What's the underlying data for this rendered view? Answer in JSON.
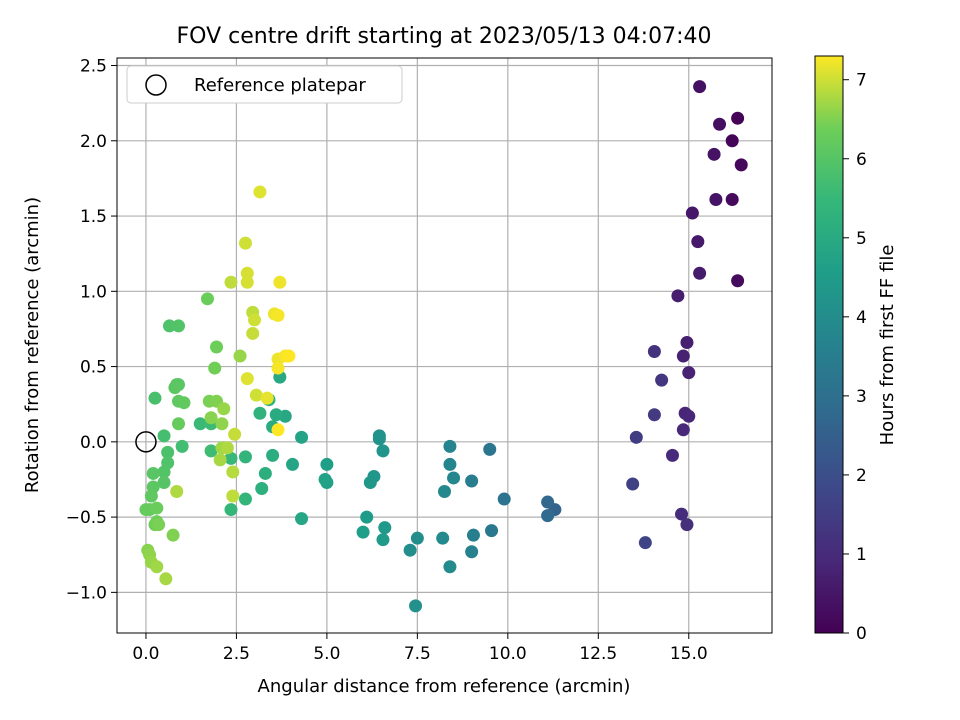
{
  "chart_data": {
    "type": "scatter",
    "title": "FOV centre drift starting at 2023/05/13 04:07:40",
    "xlabel": "Angular distance from reference (arcmin)",
    "ylabel": "Rotation from reference (arcmin)",
    "xlim": [
      -0.8,
      17.3
    ],
    "ylim": [
      -1.27,
      2.55
    ],
    "xticks": [
      "0.0",
      "2.5",
      "5.0",
      "7.5",
      "10.0",
      "12.5",
      "15.0"
    ],
    "xtick_values": [
      0,
      2.5,
      5,
      7.5,
      10,
      12.5,
      15
    ],
    "yticks": [
      "−1.0",
      "−0.5",
      "0.0",
      "0.5",
      "1.0",
      "1.5",
      "2.0",
      "2.5"
    ],
    "ytick_values": [
      -1,
      -0.5,
      0,
      0.5,
      1,
      1.5,
      2,
      2.5
    ],
    "grid": true,
    "legend": {
      "position": "top-left",
      "entries": [
        "Reference platepar"
      ]
    },
    "reference_point": {
      "x": 0,
      "y": 0,
      "label": "Reference platepar"
    },
    "colorbar": {
      "label": "Hours from first FF file",
      "min": 0,
      "max": 7.3,
      "ticks": [
        "0",
        "1",
        "2",
        "3",
        "4",
        "5",
        "6",
        "7"
      ],
      "tick_values": [
        0,
        1,
        2,
        3,
        4,
        5,
        6,
        7
      ],
      "colormap": "viridis"
    },
    "points": [
      {
        "x": 16.35,
        "y": 2.15,
        "h": 0.05
      },
      {
        "x": 16.2,
        "y": 2.0,
        "h": 0.1
      },
      {
        "x": 16.45,
        "y": 1.84,
        "h": 0.15
      },
      {
        "x": 16.2,
        "y": 1.61,
        "h": 0.2
      },
      {
        "x": 16.35,
        "y": 1.07,
        "h": 0.25
      },
      {
        "x": 15.85,
        "y": 2.11,
        "h": 0.3
      },
      {
        "x": 15.3,
        "y": 2.36,
        "h": 0.35
      },
      {
        "x": 15.7,
        "y": 1.91,
        "h": 0.4
      },
      {
        "x": 15.75,
        "y": 1.61,
        "h": 0.45
      },
      {
        "x": 15.1,
        "y": 1.52,
        "h": 0.5
      },
      {
        "x": 15.25,
        "y": 1.33,
        "h": 0.55
      },
      {
        "x": 15.3,
        "y": 1.12,
        "h": 0.6
      },
      {
        "x": 14.7,
        "y": 0.97,
        "h": 0.65
      },
      {
        "x": 14.95,
        "y": 0.66,
        "h": 0.7
      },
      {
        "x": 14.85,
        "y": 0.57,
        "h": 0.75
      },
      {
        "x": 15.0,
        "y": 0.46,
        "h": 0.8
      },
      {
        "x": 14.9,
        "y": 0.19,
        "h": 0.85
      },
      {
        "x": 15.0,
        "y": 0.17,
        "h": 0.9
      },
      {
        "x": 14.85,
        "y": 0.08,
        "h": 0.95
      },
      {
        "x": 14.55,
        "y": -0.09,
        "h": 1.0
      },
      {
        "x": 14.8,
        "y": -0.48,
        "h": 1.05
      },
      {
        "x": 14.95,
        "y": -0.55,
        "h": 1.1
      },
      {
        "x": 14.05,
        "y": 0.6,
        "h": 1.2
      },
      {
        "x": 14.25,
        "y": 0.41,
        "h": 1.3
      },
      {
        "x": 14.05,
        "y": 0.18,
        "h": 1.4
      },
      {
        "x": 13.55,
        "y": 0.03,
        "h": 1.5
      },
      {
        "x": 13.45,
        "y": -0.28,
        "h": 1.6
      },
      {
        "x": 13.8,
        "y": -0.67,
        "h": 1.7
      },
      {
        "x": 11.3,
        "y": -0.45,
        "h": 2.6
      },
      {
        "x": 11.1,
        "y": -0.4,
        "h": 2.7
      },
      {
        "x": 11.1,
        "y": -0.49,
        "h": 2.8
      },
      {
        "x": 9.9,
        "y": -0.38,
        "h": 3.1
      },
      {
        "x": 9.5,
        "y": -0.05,
        "h": 3.2
      },
      {
        "x": 9.55,
        "y": -0.59,
        "h": 3.3
      },
      {
        "x": 9.0,
        "y": -0.26,
        "h": 3.5
      },
      {
        "x": 9.05,
        "y": -0.62,
        "h": 3.55
      },
      {
        "x": 9.0,
        "y": -0.73,
        "h": 3.6
      },
      {
        "x": 8.4,
        "y": -0.03,
        "h": 3.7
      },
      {
        "x": 8.4,
        "y": -0.15,
        "h": 3.75
      },
      {
        "x": 8.5,
        "y": -0.24,
        "h": 3.8
      },
      {
        "x": 8.25,
        "y": -0.33,
        "h": 3.85
      },
      {
        "x": 8.2,
        "y": -0.64,
        "h": 3.9
      },
      {
        "x": 8.4,
        "y": -0.83,
        "h": 3.95
      },
      {
        "x": 7.5,
        "y": -0.64,
        "h": 4.0
      },
      {
        "x": 7.3,
        "y": -0.72,
        "h": 4.05
      },
      {
        "x": 7.45,
        "y": -1.09,
        "h": 4.1
      },
      {
        "x": 6.45,
        "y": 0.04,
        "h": 4.15
      },
      {
        "x": 6.45,
        "y": 0.02,
        "h": 4.2
      },
      {
        "x": 6.55,
        "y": -0.06,
        "h": 4.25
      },
      {
        "x": 6.3,
        "y": -0.23,
        "h": 4.3
      },
      {
        "x": 6.2,
        "y": -0.27,
        "h": 4.35
      },
      {
        "x": 6.6,
        "y": -0.57,
        "h": 4.4
      },
      {
        "x": 6.55,
        "y": -0.65,
        "h": 4.45
      },
      {
        "x": 6.1,
        "y": -0.5,
        "h": 4.5
      },
      {
        "x": 6.0,
        "y": -0.6,
        "h": 4.55
      },
      {
        "x": 5.0,
        "y": -0.15,
        "h": 4.6
      },
      {
        "x": 5.0,
        "y": -0.27,
        "h": 4.65
      },
      {
        "x": 4.95,
        "y": -0.25,
        "h": 4.7
      },
      {
        "x": 4.3,
        "y": 0.03,
        "h": 4.75
      },
      {
        "x": 4.05,
        "y": -0.15,
        "h": 4.8
      },
      {
        "x": 4.3,
        "y": -0.51,
        "h": 4.85
      },
      {
        "x": 3.85,
        "y": 0.17,
        "h": 4.9
      },
      {
        "x": 3.7,
        "y": 0.43,
        "h": 4.95
      },
      {
        "x": 3.6,
        "y": 0.18,
        "h": 5.0
      },
      {
        "x": 3.5,
        "y": 0.1,
        "h": 5.05
      },
      {
        "x": 3.5,
        "y": -0.09,
        "h": 5.1
      },
      {
        "x": 3.3,
        "y": -0.21,
        "h": 5.15
      },
      {
        "x": 3.2,
        "y": -0.31,
        "h": 5.2
      },
      {
        "x": 3.4,
        "y": 0.28,
        "h": 5.25
      },
      {
        "x": 3.15,
        "y": 0.19,
        "h": 5.3
      },
      {
        "x": 2.75,
        "y": -0.1,
        "h": 5.35
      },
      {
        "x": 2.75,
        "y": -0.38,
        "h": 5.4
      },
      {
        "x": 2.35,
        "y": -0.45,
        "h": 5.45
      },
      {
        "x": 2.35,
        "y": -0.11,
        "h": 5.5
      },
      {
        "x": 1.5,
        "y": 0.12,
        "h": 5.55
      },
      {
        "x": 1.8,
        "y": 0.12,
        "h": 5.6
      },
      {
        "x": 1.8,
        "y": -0.06,
        "h": 5.65
      },
      {
        "x": 1.0,
        "y": -0.03,
        "h": 5.7
      },
      {
        "x": 0.5,
        "y": 0.04,
        "h": 5.75
      },
      {
        "x": 0.25,
        "y": 0.29,
        "h": 5.8
      },
      {
        "x": 0.6,
        "y": -0.07,
        "h": 5.85
      },
      {
        "x": 0.6,
        "y": -0.14,
        "h": 5.9
      },
      {
        "x": 0.5,
        "y": -0.2,
        "h": 5.95
      },
      {
        "x": 0.5,
        "y": -0.27,
        "h": 6.0
      },
      {
        "x": 0.2,
        "y": -0.21,
        "h": 6.05
      },
      {
        "x": 0.2,
        "y": -0.3,
        "h": 6.1
      },
      {
        "x": 0.15,
        "y": -0.36,
        "h": 6.15
      },
      {
        "x": 0.1,
        "y": -0.45,
        "h": 6.2
      },
      {
        "x": 0.0,
        "y": -0.45,
        "h": 6.25
      },
      {
        "x": 0.3,
        "y": -0.44,
        "h": 6.3
      },
      {
        "x": 0.3,
        "y": -0.53,
        "h": 6.35
      },
      {
        "x": 0.25,
        "y": -0.55,
        "h": 6.4
      },
      {
        "x": 0.35,
        "y": -0.55,
        "h": 6.45
      },
      {
        "x": 0.75,
        "y": -0.62,
        "h": 6.5
      },
      {
        "x": 0.05,
        "y": -0.72,
        "h": 6.55
      },
      {
        "x": 0.1,
        "y": -0.75,
        "h": 6.6
      },
      {
        "x": 0.15,
        "y": -0.8,
        "h": 6.65
      },
      {
        "x": 0.3,
        "y": -0.83,
        "h": 6.7
      },
      {
        "x": 0.55,
        "y": -0.91,
        "h": 6.75
      },
      {
        "x": 0.85,
        "y": -0.33,
        "h": 6.8
      },
      {
        "x": 0.65,
        "y": 0.77,
        "h": 5.9
      },
      {
        "x": 0.9,
        "y": 0.77,
        "h": 5.95
      },
      {
        "x": 0.85,
        "y": 0.38,
        "h": 6.0
      },
      {
        "x": 0.9,
        "y": 0.38,
        "h": 6.05
      },
      {
        "x": 0.8,
        "y": 0.36,
        "h": 6.1
      },
      {
        "x": 0.9,
        "y": 0.27,
        "h": 6.15
      },
      {
        "x": 1.05,
        "y": 0.26,
        "h": 6.2
      },
      {
        "x": 0.9,
        "y": 0.12,
        "h": 6.25
      },
      {
        "x": 1.7,
        "y": 0.95,
        "h": 6.3
      },
      {
        "x": 1.95,
        "y": 0.63,
        "h": 6.35
      },
      {
        "x": 1.9,
        "y": 0.49,
        "h": 6.4
      },
      {
        "x": 1.75,
        "y": 0.27,
        "h": 6.45
      },
      {
        "x": 1.95,
        "y": 0.27,
        "h": 6.5
      },
      {
        "x": 1.8,
        "y": 0.16,
        "h": 6.55
      },
      {
        "x": 2.1,
        "y": 0.12,
        "h": 6.6
      },
      {
        "x": 2.15,
        "y": 0.22,
        "h": 6.65
      },
      {
        "x": 2.1,
        "y": -0.04,
        "h": 6.7
      },
      {
        "x": 2.05,
        "y": -0.12,
        "h": 6.75
      },
      {
        "x": 2.25,
        "y": -0.04,
        "h": 6.8
      },
      {
        "x": 2.4,
        "y": -0.2,
        "h": 6.85
      },
      {
        "x": 2.4,
        "y": -0.36,
        "h": 6.9
      },
      {
        "x": 2.45,
        "y": 0.05,
        "h": 6.95
      },
      {
        "x": 2.6,
        "y": 0.57,
        "h": 6.65
      },
      {
        "x": 2.35,
        "y": 1.06,
        "h": 6.9
      },
      {
        "x": 2.75,
        "y": 1.32,
        "h": 7.0
      },
      {
        "x": 2.8,
        "y": 1.12,
        "h": 7.05
      },
      {
        "x": 2.8,
        "y": 1.06,
        "h": 7.05
      },
      {
        "x": 2.8,
        "y": 0.42,
        "h": 7.1
      },
      {
        "x": 2.95,
        "y": 0.86,
        "h": 6.9
      },
      {
        "x": 3.0,
        "y": 0.81,
        "h": 7.0
      },
      {
        "x": 2.95,
        "y": 0.72,
        "h": 6.95
      },
      {
        "x": 3.05,
        "y": 0.31,
        "h": 7.0
      },
      {
        "x": 3.15,
        "y": 1.66,
        "h": 7.1
      },
      {
        "x": 3.35,
        "y": 0.29,
        "h": 7.15
      },
      {
        "x": 3.55,
        "y": 0.85,
        "h": 7.2
      },
      {
        "x": 3.65,
        "y": 0.84,
        "h": 7.25
      },
      {
        "x": 3.7,
        "y": 1.06,
        "h": 7.2
      },
      {
        "x": 3.65,
        "y": 0.55,
        "h": 7.2
      },
      {
        "x": 3.65,
        "y": 0.49,
        "h": 7.25
      },
      {
        "x": 3.85,
        "y": 0.57,
        "h": 7.25
      },
      {
        "x": 3.95,
        "y": 0.57,
        "h": 7.3
      },
      {
        "x": 3.65,
        "y": 0.08,
        "h": 7.3
      }
    ]
  }
}
